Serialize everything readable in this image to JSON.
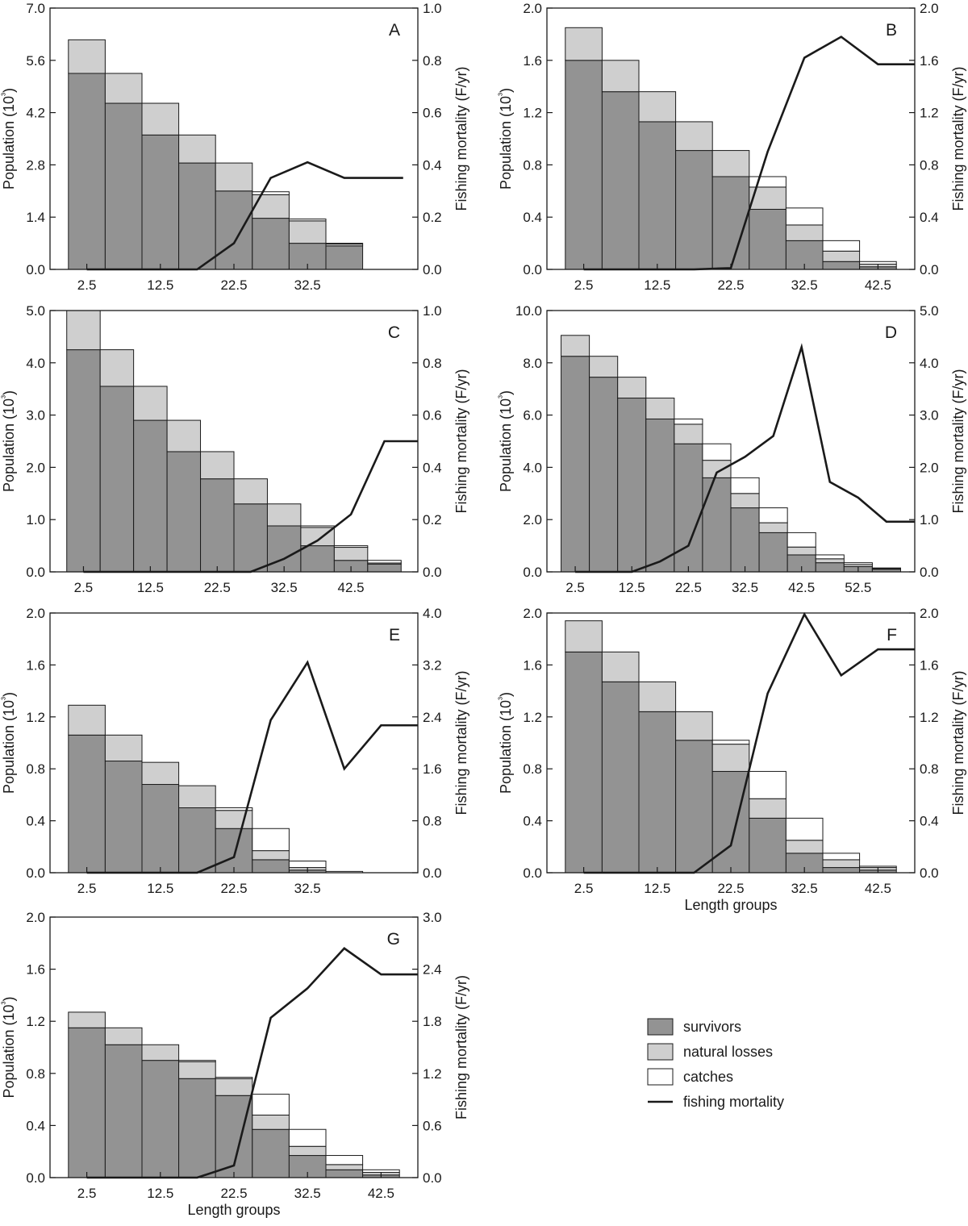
{
  "colors": {
    "survivors": "#939393",
    "natural_losses": "#cfcfcf",
    "catches": "#ffffff",
    "fishing_mortality": "#1a1a1a",
    "axis": "#1a1a1a"
  },
  "legend": {
    "placement": "bottom-right",
    "items": [
      {
        "label": "survivors",
        "kind": "box",
        "color_key": "survivors"
      },
      {
        "label": "natural losses",
        "kind": "box",
        "color_key": "natural_losses"
      },
      {
        "label": "catches",
        "kind": "box",
        "color_key": "catches"
      },
      {
        "label": "fishing mortality",
        "kind": "line",
        "color_key": "fishing_mortality"
      }
    ]
  },
  "chart_data": [
    {
      "type": "bar",
      "panel": "A",
      "ylabel": "Population (10³)",
      "y2label": "Fishing mortality (F/yr)",
      "xlabel": "",
      "xticks": [
        2.5,
        12.5,
        22.5,
        32.5
      ],
      "xlim": [
        -2.5,
        47.5
      ],
      "ylim": [
        0,
        7.0
      ],
      "yticks": [
        "0.0",
        "1.4",
        "2.8",
        "4.2",
        "5.6",
        "7.0"
      ],
      "y2lim": [
        0,
        1.0
      ],
      "y2ticks": [
        "0.0",
        "0.2",
        "0.4",
        "0.6",
        "0.8",
        "1.0"
      ],
      "categories": [
        2.5,
        7.5,
        12.5,
        17.5,
        22.5,
        27.5,
        32.5,
        37.5
      ],
      "series": [
        {
          "name": "survivors",
          "values": [
            5.25,
            4.45,
            3.6,
            2.85,
            2.1,
            1.37,
            0.7,
            0.63
          ]
        },
        {
          "name": "natural losses",
          "values": [
            0.9,
            0.8,
            0.85,
            0.75,
            0.75,
            0.63,
            0.6,
            0.05
          ]
        },
        {
          "name": "catches",
          "values": [
            0,
            0,
            0,
            0,
            0,
            0.08,
            0.05,
            0.02
          ]
        }
      ],
      "line": {
        "name": "fishing mortality",
        "x": [
          2.5,
          7.5,
          12.5,
          17.5,
          22.5,
          27.5,
          32.5,
          37.5,
          42.5,
          45.5
        ],
        "y": [
          0,
          0,
          0,
          0,
          0.1,
          0.35,
          0.41,
          0.35,
          0.35,
          0.35
        ]
      }
    },
    {
      "type": "bar",
      "panel": "B",
      "ylabel": "Population (10³)",
      "y2label": "Fishing mortality (F/yr)",
      "xlabel": "",
      "xticks": [
        2.5,
        12.5,
        22.5,
        32.5,
        42.5
      ],
      "xlim": [
        -2.5,
        47.5
      ],
      "ylim": [
        0,
        2.0
      ],
      "yticks": [
        "0.0",
        "0.4",
        "0.8",
        "1.2",
        "1.6",
        "2.0"
      ],
      "y2lim": [
        0,
        2.0
      ],
      "y2ticks": [
        "0.0",
        "0.4",
        "0.8",
        "1.2",
        "1.6",
        "2.0"
      ],
      "categories": [
        2.5,
        7.5,
        12.5,
        17.5,
        22.5,
        27.5,
        32.5,
        37.5,
        42.5
      ],
      "series": [
        {
          "name": "survivors",
          "values": [
            1.6,
            1.36,
            1.13,
            0.91,
            0.71,
            0.46,
            0.22,
            0.06,
            0.02
          ]
        },
        {
          "name": "natural losses",
          "values": [
            0.25,
            0.24,
            0.23,
            0.22,
            0.2,
            0.17,
            0.12,
            0.08,
            0.02
          ]
        },
        {
          "name": "catches",
          "values": [
            0,
            0,
            0,
            0,
            0,
            0.08,
            0.13,
            0.08,
            0.02
          ]
        }
      ],
      "line": {
        "name": "fishing mortality",
        "x": [
          2.5,
          7.5,
          12.5,
          17.5,
          22.5,
          27.5,
          32.5,
          37.5,
          42.5,
          47.5
        ],
        "y": [
          0,
          0,
          0,
          0,
          0.01,
          0.9,
          1.62,
          1.78,
          1.57,
          1.57
        ]
      }
    },
    {
      "type": "bar",
      "panel": "C",
      "ylabel": "Population (10³)",
      "y2label": "Fishing mortality (F/yr)",
      "xlabel": "",
      "xticks": [
        2.5,
        12.5,
        22.5,
        32.5,
        42.5
      ],
      "xlim": [
        -2.5,
        52.5
      ],
      "ylim": [
        0,
        5.0
      ],
      "yticks": [
        "0.0",
        "1.0",
        "2.0",
        "3.0",
        "4.0",
        "5.0"
      ],
      "y2lim": [
        0,
        1.0
      ],
      "y2ticks": [
        "0.0",
        "0.2",
        "0.4",
        "0.6",
        "0.8",
        "1.0"
      ],
      "categories": [
        2.5,
        7.5,
        12.5,
        17.5,
        22.5,
        27.5,
        32.5,
        37.5,
        42.5,
        47.5
      ],
      "series": [
        {
          "name": "survivors",
          "values": [
            4.25,
            3.55,
            2.9,
            2.3,
            1.78,
            1.3,
            0.88,
            0.5,
            0.22,
            0.15
          ]
        },
        {
          "name": "natural losses",
          "values": [
            0.75,
            0.7,
            0.65,
            0.6,
            0.52,
            0.48,
            0.42,
            0.35,
            0.25,
            0.02
          ]
        },
        {
          "name": "catches",
          "values": [
            0,
            0,
            0,
            0,
            0,
            0,
            0,
            0.03,
            0.03,
            0.05
          ]
        }
      ],
      "line": {
        "name": "fishing mortality",
        "x": [
          2.5,
          7.5,
          12.5,
          17.5,
          22.5,
          27.5,
          32.5,
          37.5,
          42.5,
          47.5,
          52.5
        ],
        "y": [
          0,
          0,
          0,
          0,
          0,
          0,
          0.05,
          0.12,
          0.22,
          0.5,
          0.5
        ]
      }
    },
    {
      "type": "bar",
      "panel": "D",
      "ylabel": "Population (10³)",
      "y2label": "Fishing mortality (F/yr)",
      "xlabel": "",
      "xticks": [
        2.5,
        12.5,
        22.5,
        32.5,
        42.5,
        52.5
      ],
      "xlim": [
        -2.5,
        62.5
      ],
      "ylim": [
        0,
        10.0
      ],
      "yticks": [
        "0.0",
        "2.0",
        "4.0",
        "6.0",
        "8.0",
        "10.0"
      ],
      "y2lim": [
        0,
        5.0
      ],
      "y2ticks": [
        "0.0",
        "1.0",
        "2.0",
        "3.0",
        "4.0",
        "5.0"
      ],
      "categories": [
        2.5,
        7.5,
        12.5,
        17.5,
        22.5,
        27.5,
        32.5,
        37.5,
        42.5,
        47.5,
        52.5,
        57.5
      ],
      "series": [
        {
          "name": "survivors",
          "values": [
            8.25,
            7.45,
            6.65,
            5.85,
            4.9,
            3.6,
            2.45,
            1.5,
            0.65,
            0.35,
            0.2,
            0.1
          ]
        },
        {
          "name": "natural losses",
          "values": [
            0.8,
            0.8,
            0.8,
            0.8,
            0.75,
            0.67,
            0.55,
            0.38,
            0.3,
            0.15,
            0.08,
            0.02
          ]
        },
        {
          "name": "catches",
          "values": [
            0,
            0,
            0,
            0,
            0.2,
            0.63,
            0.6,
            0.57,
            0.55,
            0.15,
            0.07,
            0.03
          ]
        }
      ],
      "line": {
        "name": "fishing mortality",
        "x": [
          2.5,
          7.5,
          12.5,
          17.5,
          22.5,
          27.5,
          32.5,
          37.5,
          42.5,
          47.5,
          52.5,
          57.5,
          62.5
        ],
        "y": [
          0,
          0,
          0,
          0.2,
          0.5,
          1.9,
          2.2,
          2.6,
          4.3,
          1.72,
          1.42,
          0.96,
          0.96
        ]
      }
    },
    {
      "type": "bar",
      "panel": "E",
      "ylabel": "Population (10³)",
      "y2label": "Fishing mortality (F/yr)",
      "xlabel": "",
      "xticks": [
        2.5,
        12.5,
        22.5,
        32.5
      ],
      "xlim": [
        -2.5,
        47.5
      ],
      "ylim": [
        0,
        2.0
      ],
      "yticks": [
        "0.0",
        "0.4",
        "0.8",
        "1.2",
        "1.6",
        "2.0"
      ],
      "y2lim": [
        0,
        4.0
      ],
      "y2ticks": [
        "0.0",
        "0.8",
        "1.6",
        "2.4",
        "3.2",
        "4.0"
      ],
      "categories": [
        2.5,
        7.5,
        12.5,
        17.5,
        22.5,
        27.5,
        32.5,
        37.5
      ],
      "series": [
        {
          "name": "survivors",
          "values": [
            1.06,
            0.86,
            0.68,
            0.5,
            0.34,
            0.1,
            0.02,
            0.0
          ]
        },
        {
          "name": "natural losses",
          "values": [
            0.23,
            0.2,
            0.17,
            0.17,
            0.14,
            0.07,
            0.02,
            0.0
          ]
        },
        {
          "name": "catches",
          "values": [
            0,
            0,
            0,
            0,
            0.02,
            0.17,
            0.05,
            0.01
          ]
        }
      ],
      "line": {
        "name": "fishing mortality",
        "x": [
          2.5,
          7.5,
          12.5,
          17.5,
          22.5,
          27.5,
          32.5,
          37.5,
          42.5,
          47.5
        ],
        "y": [
          0,
          0,
          0,
          0,
          0.24,
          2.35,
          3.24,
          1.6,
          2.27,
          2.27
        ]
      }
    },
    {
      "type": "bar",
      "panel": "F",
      "ylabel": "Population (10³)",
      "y2label": "Fishing mortality (F/yr)",
      "xlabel": "Length groups",
      "xticks": [
        2.5,
        12.5,
        22.5,
        32.5,
        42.5
      ],
      "xlim": [
        -2.5,
        47.5
      ],
      "ylim": [
        0,
        2.0
      ],
      "yticks": [
        "0.0",
        "0.4",
        "0.8",
        "1.2",
        "1.6",
        "2.0"
      ],
      "y2lim": [
        0,
        2.0
      ],
      "y2ticks": [
        "0.0",
        "0.4",
        "0.8",
        "1.2",
        "1.6",
        "2.0"
      ],
      "categories": [
        2.5,
        7.5,
        12.5,
        17.5,
        22.5,
        27.5,
        32.5,
        37.5,
        42.5
      ],
      "series": [
        {
          "name": "survivors",
          "values": [
            1.7,
            1.47,
            1.24,
            1.02,
            0.78,
            0.42,
            0.15,
            0.04,
            0.02
          ]
        },
        {
          "name": "natural losses",
          "values": [
            0.24,
            0.23,
            0.23,
            0.22,
            0.21,
            0.15,
            0.1,
            0.06,
            0.02
          ]
        },
        {
          "name": "catches",
          "values": [
            0,
            0,
            0,
            0,
            0.03,
            0.21,
            0.17,
            0.05,
            0.01
          ]
        }
      ],
      "line": {
        "name": "fishing mortality",
        "x": [
          2.5,
          7.5,
          12.5,
          17.5,
          22.5,
          27.5,
          32.5,
          37.5,
          42.5,
          47.5
        ],
        "y": [
          0,
          0,
          0,
          0,
          0.21,
          1.38,
          1.99,
          1.52,
          1.72,
          1.72
        ]
      }
    },
    {
      "type": "bar",
      "panel": "G",
      "ylabel": "Population (10³)",
      "y2label": "Fishing mortality (F/yr)",
      "xlabel": "Length groups",
      "xticks": [
        2.5,
        12.5,
        22.5,
        32.5,
        42.5
      ],
      "xlim": [
        -2.5,
        47.5
      ],
      "ylim": [
        0,
        2.0
      ],
      "yticks": [
        "0.0",
        "0.4",
        "0.8",
        "1.2",
        "1.6",
        "2.0"
      ],
      "y2lim": [
        0,
        3.0
      ],
      "y2ticks": [
        "0.0",
        "0.6",
        "1.2",
        "1.8",
        "2.4",
        "3.0"
      ],
      "categories": [
        2.5,
        7.5,
        12.5,
        17.5,
        22.5,
        27.5,
        32.5,
        37.5,
        42.5
      ],
      "series": [
        {
          "name": "survivors",
          "values": [
            1.15,
            1.02,
            0.9,
            0.76,
            0.63,
            0.37,
            0.17,
            0.06,
            0.02
          ]
        },
        {
          "name": "natural losses",
          "values": [
            0.12,
            0.13,
            0.12,
            0.13,
            0.13,
            0.11,
            0.07,
            0.04,
            0.02
          ]
        },
        {
          "name": "catches",
          "values": [
            0,
            0,
            0,
            0.01,
            0.01,
            0.16,
            0.13,
            0.07,
            0.02
          ]
        }
      ],
      "line": {
        "name": "fishing mortality",
        "x": [
          2.5,
          7.5,
          12.5,
          17.5,
          22.5,
          27.5,
          32.5,
          37.5,
          42.5,
          47.5
        ],
        "y": [
          0,
          0,
          0,
          0,
          0.14,
          1.84,
          2.18,
          2.64,
          2.34,
          2.34
        ]
      }
    }
  ]
}
